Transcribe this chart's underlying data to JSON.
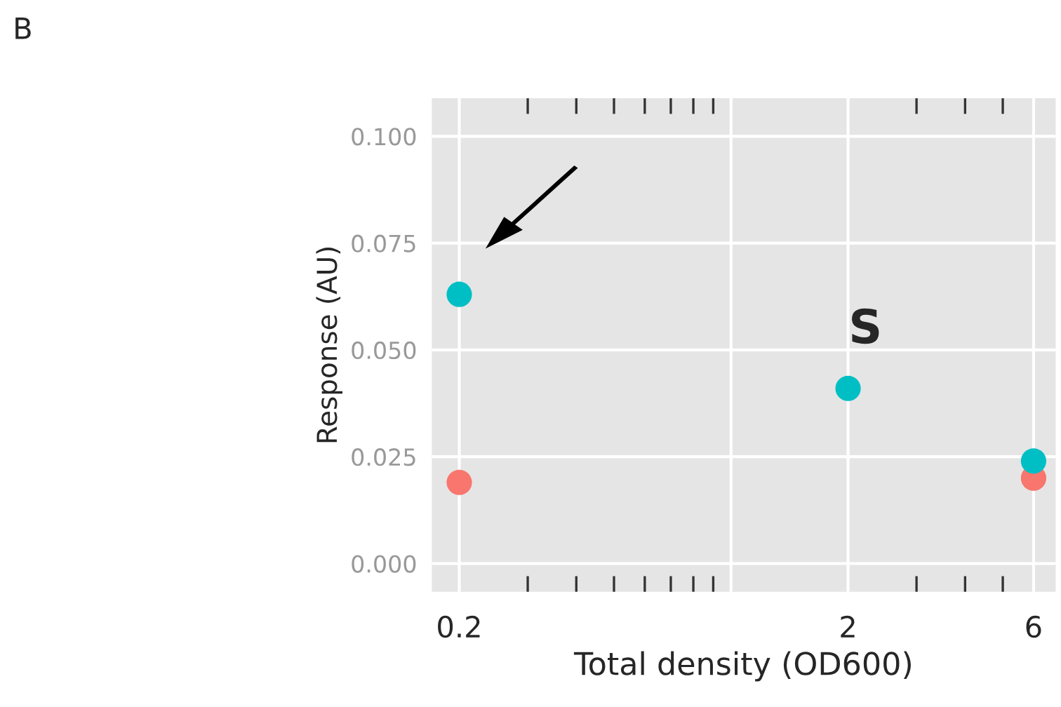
{
  "chart_data": {
    "type": "scatter",
    "xlabel": "Total density (OD600)",
    "ylabel": "Response (AU)",
    "log": "x",
    "x": [
      0.2,
      2,
      6
    ],
    "series": [
      {
        "color": "#f8766d",
        "values": [
          0.019,
          null,
          0.02
        ]
      },
      {
        "color": "#00bfc4",
        "values": [
          0.063,
          0.041,
          0.024
        ]
      }
    ],
    "xlim": [
      0.17,
      6.84
    ],
    "xticks": [
      0.2,
      {
        "value": 1,
        "label": null
      },
      2,
      6
    ],
    "ylim": [
      -0.0066,
      0.1089
    ],
    "yticks": [
      {
        "value": 0,
        "label": "0.000"
      },
      0.025,
      {
        "value": 0.05,
        "label": "0.050"
      },
      0.075,
      {
        "value": 0.1,
        "label": "0.100"
      }
    ],
    "grid": true,
    "marker": "circle",
    "annotations": [
      "B",
      "S"
    ]
  }
}
